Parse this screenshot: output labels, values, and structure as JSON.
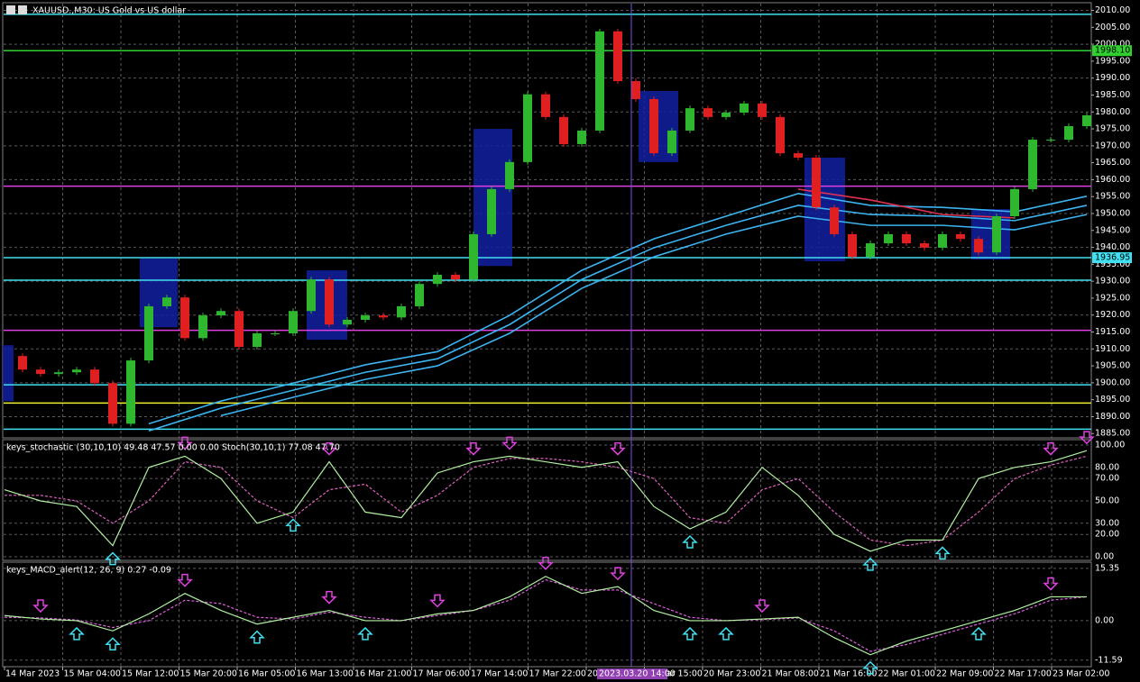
{
  "title": "XAUUSD.,M30: US Gold vs US dollar",
  "chart": {
    "type": "candlestick",
    "close": [
      1907.9,
      1903.9,
      1902.6,
      1903.1,
      1903.9,
      1899.9,
      1887.9,
      1906.6,
      1922.6,
      1925.2,
      1913.2,
      1919.9,
      1921.2,
      1910.6,
      1914.6,
      1914.6,
      1921.2,
      1930.5,
      1917.2,
      1918.6,
      1919.9,
      1919.3,
      1922.6,
      1929.2,
      1931.9,
      1930.5,
      1943.9,
      1957.2,
      1965.2,
      1985.2,
      1978.5,
      1970.5,
      1974.5,
      2003.8,
      1989.1,
      1983.8,
      1967.8,
      1974.5,
      1981.1,
      1978.5,
      1979.8,
      1982.5,
      1978.5,
      1967.8,
      1966.5,
      1951.8,
      1943.9,
      1937.2,
      1941.2,
      1943.9,
      1941.2,
      1939.9,
      1943.9,
      1942.5,
      1938.5,
      1949.2,
      1957.2,
      1971.8,
      1971.8,
      1975.8,
      1979.0
    ],
    "up_color": "#2fb82f",
    "down_color": "#e02020",
    "ylim": [
      1884,
      2012
    ],
    "yticks": [
      {
        "value": 1885,
        "label": "1885.00"
      },
      {
        "value": 1890,
        "label": "1890.00"
      },
      {
        "value": 1895,
        "label": "1895.00"
      },
      {
        "value": 1900,
        "label": "1900.00"
      },
      {
        "value": 1905,
        "label": "1905.00"
      },
      {
        "value": 1910,
        "label": "1910.00"
      },
      {
        "value": 1915,
        "label": "1915.00"
      },
      {
        "value": 1920,
        "label": "1920.00"
      },
      {
        "value": 1925,
        "label": "1925.00"
      },
      {
        "value": 1930,
        "label": "1930.00"
      },
      {
        "value": 1935,
        "label": "1935.00"
      },
      {
        "value": 1940,
        "label": "1940.00"
      },
      {
        "value": 1945,
        "label": "1945.00"
      },
      {
        "value": 1950,
        "label": "1950.00"
      },
      {
        "value": 1955,
        "label": "1955.00"
      },
      {
        "value": 1960,
        "label": "1960.00"
      },
      {
        "value": 1965,
        "label": "1965.00"
      },
      {
        "value": 1970,
        "label": "1970.00"
      },
      {
        "value": 1975,
        "label": "1975.00"
      },
      {
        "value": 1980,
        "label": "1980.00"
      },
      {
        "value": 1985,
        "label": "1985.00"
      },
      {
        "value": 1990,
        "label": "1990.00"
      },
      {
        "value": 1995,
        "label": "1995.00"
      },
      {
        "value": 2000,
        "label": "2000.00"
      },
      {
        "value": 2005,
        "label": "2005.00"
      },
      {
        "value": 2010,
        "label": "2010.00"
      }
    ],
    "ma_series": [
      {
        "color": "#3cb4f0",
        "values": [
          null,
          null,
          1887.9,
          1894.6,
          1899.9,
          1905.3,
          1909.2,
          1919.9,
          1933.2,
          1942.5,
          1949.2,
          1955.9,
          1952.4,
          1951.8,
          1950.5,
          1955.1
        ]
      },
      {
        "color": "#3cb4f0",
        "values": [
          null,
          null,
          1885.8,
          1892.5,
          1897.8,
          1903.1,
          1907.1,
          1917.2,
          1930.5,
          1939.9,
          1946.5,
          1952.4,
          1949.7,
          1949.2,
          1947.9,
          1952.4
        ]
      },
      {
        "color": "#3cb4f0",
        "values": [
          null,
          null,
          null,
          1890.3,
          1895.7,
          1901.0,
          1905.0,
          1914.6,
          1927.9,
          1937.2,
          1943.9,
          1949.2,
          1946.5,
          1946.5,
          1945.2,
          1949.7
        ]
      },
      {
        "color": "#e03050",
        "values": [
          null,
          null,
          null,
          null,
          null,
          null,
          null,
          null,
          null,
          null,
          null,
          1957.2,
          1954.0,
          1949.7,
          1948.7,
          null
        ]
      }
    ],
    "levels": [
      {
        "value": 2008.85,
        "color": "#40e0f0"
      },
      {
        "value": 1998.1,
        "color": "#30d030",
        "label": "1998.10"
      },
      {
        "value": 1958.07,
        "color": "#e040e0"
      },
      {
        "value": 1936.95,
        "color": "#40e0f0",
        "label": "1936.95"
      },
      {
        "value": 1930.3,
        "color": "#40e0f0"
      },
      {
        "value": 1915.5,
        "color": "#e040e0"
      },
      {
        "value": 1899.4,
        "color": "#40e0f0"
      },
      {
        "value": 1894.0,
        "color": "#f0f030"
      },
      {
        "value": 1886.3,
        "color": "#40e0f0"
      }
    ],
    "zones": [
      {
        "from": -0.1,
        "to": 0.5,
        "low": 1894.6,
        "high": 1911.1
      },
      {
        "from": 7.5,
        "to": 9.6,
        "low": 1916.4,
        "high": 1936.7
      },
      {
        "from": 16.75,
        "to": 19,
        "low": 1912.7,
        "high": 1933.2
      },
      {
        "from": 26,
        "to": 28.15,
        "low": 1934.5,
        "high": 1975.0
      },
      {
        "from": 35.15,
        "to": 37.35,
        "low": 1965.2,
        "high": 1986.2
      },
      {
        "from": 44.35,
        "to": 46.6,
        "low": 1935.9,
        "high": 1966.5
      },
      {
        "from": 53.6,
        "to": 55.75,
        "low": 1936.4,
        "high": 1951.3
      }
    ]
  },
  "stochastic": {
    "label": "keys_stochastic (30,10,10) 49.48 47.57 0.00 0.00 Stoch(30,10,1) 77.08 47.70",
    "ylim": [
      -3.2,
      104
    ],
    "yticks": [
      {
        "value": 0,
        "label": "0.00"
      },
      {
        "value": 20,
        "label": "20.00"
      },
      {
        "value": 30,
        "label": "30.00"
      },
      {
        "value": 50,
        "label": "50.00"
      },
      {
        "value": 70,
        "label": "70.00"
      },
      {
        "value": 80,
        "label": "80.00"
      },
      {
        "value": 100,
        "label": "100.00"
      }
    ],
    "main": {
      "color": "#b0f0a0",
      "values": [
        60,
        50,
        45,
        10,
        80,
        90,
        70,
        30,
        40,
        85,
        40,
        35,
        75,
        85,
        90,
        85,
        80,
        85,
        45,
        25,
        40,
        80,
        55,
        20,
        5,
        15,
        15,
        70,
        80,
        85,
        95
      ]
    },
    "signal": {
      "color": "#e060c0",
      "values": [
        55,
        55,
        50,
        30,
        50,
        85,
        80,
        50,
        35,
        60,
        65,
        40,
        55,
        80,
        88,
        88,
        85,
        80,
        70,
        35,
        30,
        60,
        70,
        40,
        15,
        10,
        15,
        40,
        70,
        82,
        90
      ]
    },
    "down_signals": [
      5,
      9,
      13,
      14,
      17,
      29,
      30
    ],
    "up_signals": [
      3,
      8,
      19,
      24,
      26
    ]
  },
  "macd": {
    "label": "keys_MACD_alert(12, 26, 9) 0.27 -0.09",
    "ylim": [
      -13.5,
      16.9
    ],
    "yticks": [
      {
        "value": -11.59,
        "label": "-11.59"
      },
      {
        "value": 0,
        "label": "0.00"
      },
      {
        "value": 15.35,
        "label": "15.35"
      }
    ],
    "main": {
      "color": "#b0f0a0",
      "values": [
        1.5,
        0.5,
        0,
        -3,
        2,
        8,
        3,
        -1,
        1,
        3,
        0,
        0,
        2,
        3,
        7,
        13,
        8,
        10,
        3,
        0,
        0,
        0.5,
        1,
        -5,
        -10,
        -6,
        -3,
        0,
        3,
        7,
        7
      ]
    },
    "signal": {
      "color": "#e060e0",
      "values": [
        1,
        0.8,
        0.2,
        -2,
        0,
        6,
        5,
        1,
        0.5,
        2.5,
        1,
        0,
        1.5,
        3,
        6,
        12,
        9,
        9,
        5,
        1,
        0,
        0.3,
        0.8,
        -3,
        -9,
        -7,
        -4,
        -1,
        2,
        6,
        7
      ]
    },
    "down_signals": [
      1,
      5,
      9,
      12,
      15,
      17,
      21,
      29
    ],
    "up_signals": [
      2,
      3,
      7,
      10,
      19,
      20,
      24,
      27
    ]
  },
  "time_axis": {
    "labels": [
      "14 Mar 2023",
      "15 Mar 04:00",
      "15 Mar 12:00",
      "15 Mar 20:00",
      "16 Mar 05:00",
      "16 Mar 13:00",
      "16 Mar 21:00",
      "17 Mar 06:00",
      "17 Mar 14:00",
      "17 Mar 22:00",
      "20 Mar 06:00",
      "20 Mar 15:00",
      "20 Mar 23:00",
      "21 Mar 08:00",
      "21 Mar 16:00",
      "22 Mar 01:00",
      "22 Mar 09:00",
      "22 Mar 17:00",
      "23 Mar 02:00"
    ],
    "crosshair": "2023.03.20 14:00"
  }
}
